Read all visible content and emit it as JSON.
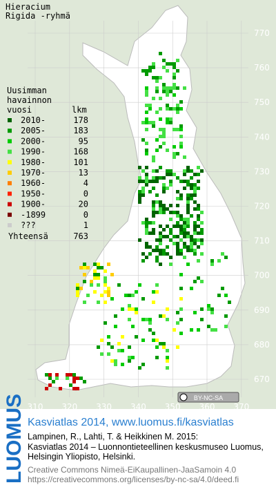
{
  "title": [
    "Hieracium",
    "Rigida -ryhmä"
  ],
  "legend": {
    "header": [
      "Uusimman",
      "havainnon",
      "vuosi"
    ],
    "count_header": "lkm",
    "rows": [
      {
        "label": "2010-",
        "count": 178,
        "color": "#006400"
      },
      {
        "label": "2005-",
        "count": 183,
        "color": "#009a00"
      },
      {
        "label": "2000-",
        "count": 95,
        "color": "#00cc00"
      },
      {
        "label": "1990-",
        "count": 168,
        "color": "#44e044"
      },
      {
        "label": "1980-",
        "count": 101,
        "color": "#ffff00"
      },
      {
        "label": "1970-",
        "count": 13,
        "color": "#ffcc00"
      },
      {
        "label": "1960-",
        "count": 4,
        "color": "#ff7f00"
      },
      {
        "label": "1950-",
        "count": 0,
        "color": "#ff2200"
      },
      {
        "label": "1900-",
        "count": 20,
        "color": "#cc0000"
      },
      {
        "label": "-1899",
        "count": 0,
        "color": "#7a0000"
      },
      {
        "label": "???",
        "count": 1,
        "color": "#cccccc"
      }
    ],
    "total_label": "Yhteensä",
    "total": 763
  },
  "axes": {
    "y_labels": [
      770,
      760,
      750,
      740,
      730,
      720,
      710,
      700,
      690,
      680,
      670
    ],
    "x_labels": [
      310,
      320,
      330,
      340,
      350,
      360,
      370
    ]
  },
  "badge": "BY-NC-SA",
  "logo": "LUOMUS",
  "footer": {
    "title": "Kasviatlas 2014, www.luomus.fi/kasviatlas",
    "citation": [
      "Lampinen, R., Lahti, T. & Heikkinen M. 2015:",
      "Kasviatlas 2014 – Luonnontieteellinen keskusmuseo Luomus,",
      "Helsingin Yliopisto, Helsinki."
    ],
    "license": [
      "Creative Commons Nimeä-EiKaupallinen-JaaSamoin 4.0",
      "https://creativecommons.org/licenses/by-nc-sa/4.0/deed.fi"
    ]
  }
}
